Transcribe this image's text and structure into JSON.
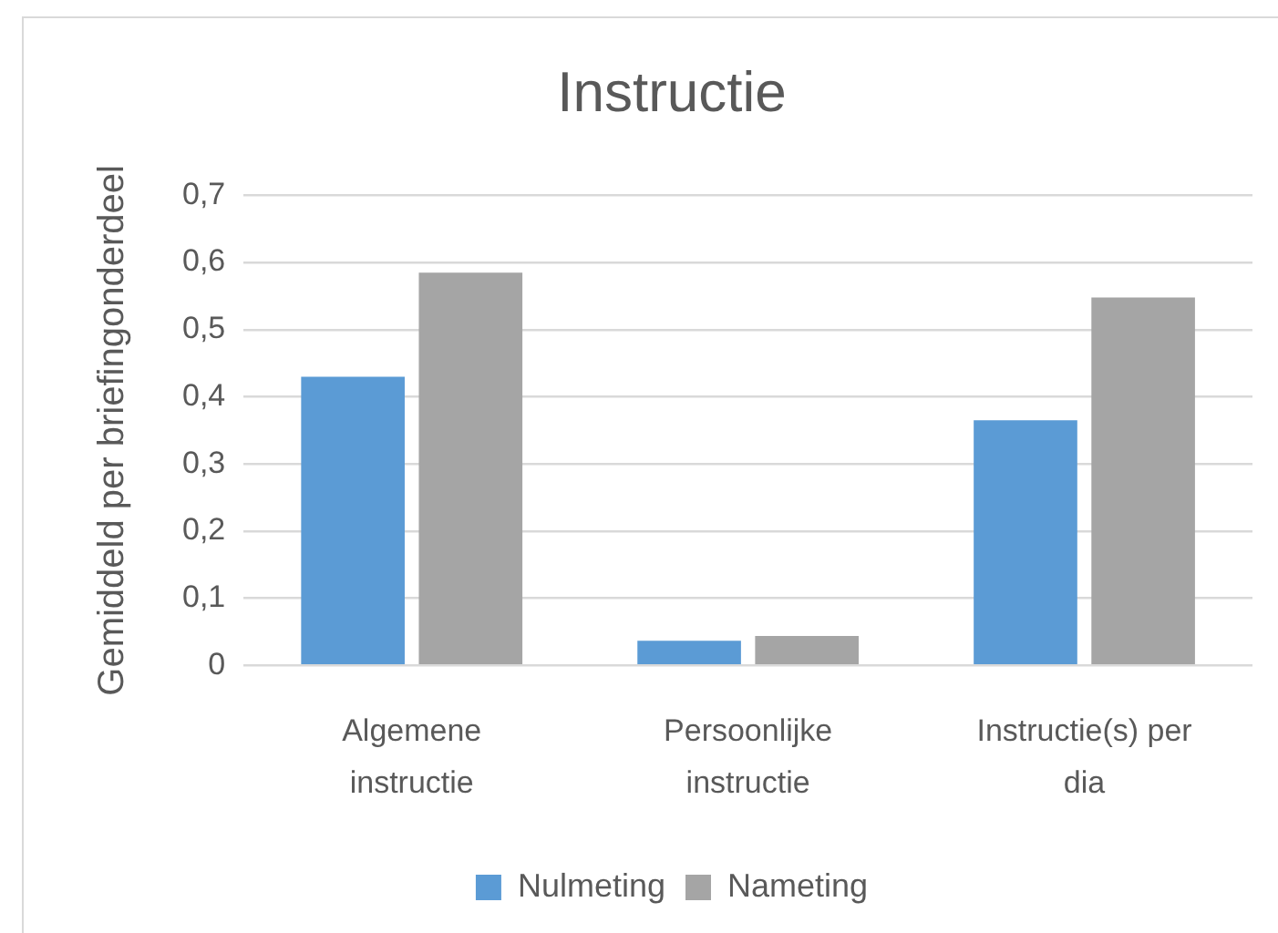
{
  "chart_data": {
    "type": "bar",
    "title": "Instructie",
    "ylabel": "Gemiddeld per briefingonderdeel",
    "categories": [
      "Algemene instructie",
      "Persoonlijke instructie",
      "Instructie(s) per dia"
    ],
    "series": [
      {
        "name": "Nulmeting",
        "color": "#5b9bd5",
        "values": [
          0.43,
          0.037,
          0.365
        ]
      },
      {
        "name": "Nameting",
        "color": "#a5a5a5",
        "values": [
          0.585,
          0.044,
          0.548
        ]
      }
    ],
    "ylim": [
      0,
      0.7
    ],
    "yticks": [
      {
        "value": 0,
        "label": "0"
      },
      {
        "value": 0.1,
        "label": "0,1"
      },
      {
        "value": 0.2,
        "label": "0,2"
      },
      {
        "value": 0.3,
        "label": "0,3"
      },
      {
        "value": 0.4,
        "label": "0,4"
      },
      {
        "value": 0.5,
        "label": "0,5"
      },
      {
        "value": 0.6,
        "label": "0,6"
      },
      {
        "value": 0.7,
        "label": "0,7"
      }
    ],
    "grid": "y",
    "legend": "bottom"
  }
}
